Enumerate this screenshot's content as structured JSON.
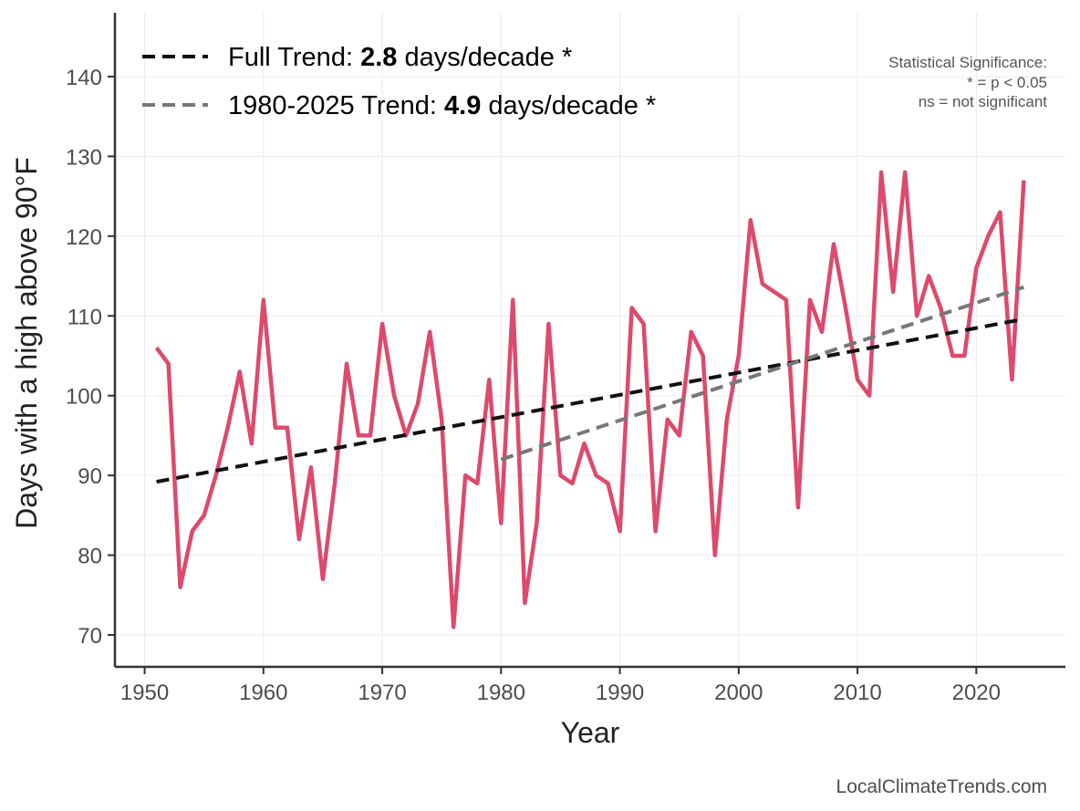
{
  "chart_data": {
    "type": "line",
    "title": "",
    "xlabel": "Year",
    "ylabel": "Days with a high above 90°F",
    "xlim": [
      1947.5,
      2027.5
    ],
    "ylim": [
      66,
      148
    ],
    "x_ticks": [
      1950,
      1960,
      1970,
      1980,
      1990,
      2000,
      2010,
      2020
    ],
    "y_ticks": [
      70,
      80,
      90,
      100,
      110,
      120,
      130,
      140
    ],
    "grid": true,
    "legend_position": "top-left",
    "series": [
      {
        "name": "Days above 90°F",
        "color": "#dd4a6b",
        "x": [
          1951,
          1952,
          1953,
          1954,
          1955,
          1956,
          1957,
          1958,
          1959,
          1960,
          1961,
          1962,
          1963,
          1964,
          1965,
          1966,
          1967,
          1968,
          1969,
          1970,
          1971,
          1972,
          1973,
          1974,
          1975,
          1976,
          1977,
          1978,
          1979,
          1980,
          1981,
          1982,
          1983,
          1984,
          1985,
          1986,
          1987,
          1988,
          1989,
          1990,
          1991,
          1992,
          1993,
          1994,
          1995,
          1996,
          1997,
          1998,
          1999,
          2000,
          2001,
          2002,
          2003,
          2004,
          2005,
          2006,
          2007,
          2008,
          2009,
          2010,
          2011,
          2012,
          2013,
          2014,
          2015,
          2016,
          2017,
          2018,
          2019,
          2020,
          2021,
          2022,
          2023,
          2024
        ],
        "values": [
          106,
          104,
          76,
          83,
          85,
          90,
          96,
          103,
          94,
          112,
          96,
          96,
          82,
          91,
          77,
          89,
          104,
          95,
          95,
          109,
          100,
          95,
          99,
          108,
          97,
          71,
          90,
          89,
          102,
          84,
          112,
          74,
          84,
          109,
          90,
          89,
          94,
          90,
          89,
          83,
          111,
          109,
          83,
          97,
          95,
          108,
          105,
          80,
          97,
          105,
          122,
          114,
          113,
          112,
          86,
          112,
          108,
          119,
          111,
          102,
          100,
          128,
          113,
          128,
          110,
          115,
          111,
          105,
          105,
          116,
          120,
          123,
          102,
          127
        ]
      },
      {
        "name": "Full Trend",
        "style": "dashed",
        "color": "#111111",
        "x": [
          1951,
          2024
        ],
        "values": [
          89.2,
          109.6
        ]
      },
      {
        "name": "1980-2025 Trend",
        "style": "dashed",
        "color": "#777777",
        "x": [
          1980,
          2024
        ],
        "values": [
          92.0,
          113.6
        ]
      }
    ],
    "legend": [
      {
        "prefix": "Full Trend: ",
        "value": "2.8",
        "suffix": " days/decade *"
      },
      {
        "prefix": "1980-2025 Trend: ",
        "value": "4.9",
        "suffix": " days/decade *"
      }
    ],
    "annotations": {
      "significance_title": "Statistical Significance:",
      "significance_star": "* = p < 0.05",
      "significance_ns": "ns = not significant"
    }
  },
  "footer": {
    "source": "LocalClimateTrends.com"
  }
}
